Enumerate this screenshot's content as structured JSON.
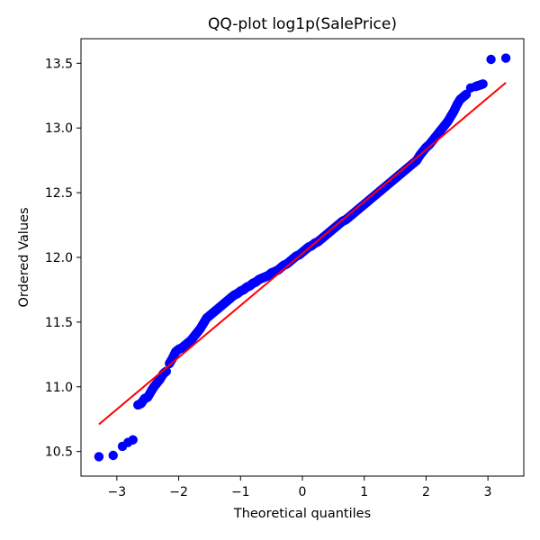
{
  "chart_data": {
    "type": "scatter",
    "title": "QQ-plot log1p(SalePrice)",
    "xlabel": "Theoretical quantiles",
    "ylabel": "Ordered Values",
    "xlim": [
      -3.58,
      3.58
    ],
    "ylim": [
      10.31,
      13.69
    ],
    "xticks": [
      -3,
      -2,
      -1,
      0,
      1,
      2,
      3
    ],
    "xtick_labels": [
      "−3",
      "−2",
      "−1",
      "0",
      "1",
      "2",
      "3"
    ],
    "yticks": [
      10.5,
      11.0,
      11.5,
      12.0,
      12.5,
      13.0,
      13.5
    ],
    "ytick_labels": [
      "10.5",
      "11.0",
      "11.5",
      "12.0",
      "12.5",
      "13.0",
      "13.5"
    ],
    "grid": false,
    "legend": "none",
    "series": [
      {
        "kind": "points",
        "color": "#0000ff",
        "x": [
          -3.29,
          -3.06,
          -2.91,
          -2.82,
          -2.74,
          -2.66,
          -2.61,
          -2.55,
          -2.5,
          -2.44,
          -2.4,
          -2.35,
          -2.3,
          -2.25,
          -2.2,
          -2.15,
          -2.1,
          -2.05,
          -2.0,
          -1.95,
          -1.9,
          -1.85,
          -1.8,
          -1.75,
          -1.7,
          -1.65,
          -1.6,
          -1.55,
          -1.5,
          -1.45,
          -1.4,
          -1.35,
          -1.3,
          -1.25,
          -1.2,
          -1.15,
          -1.1,
          -1.05,
          -1.0,
          -0.95,
          -0.9,
          -0.85,
          -0.8,
          -0.75,
          -0.7,
          -0.65,
          -0.6,
          -0.55,
          -0.5,
          -0.45,
          -0.4,
          -0.35,
          -0.3,
          -0.25,
          -0.2,
          -0.15,
          -0.1,
          -0.05,
          0.0,
          0.05,
          0.1,
          0.15,
          0.2,
          0.25,
          0.3,
          0.35,
          0.4,
          0.45,
          0.5,
          0.55,
          0.6,
          0.65,
          0.7,
          0.75,
          0.8,
          0.85,
          0.9,
          0.95,
          1.0,
          1.05,
          1.1,
          1.15,
          1.2,
          1.25,
          1.3,
          1.35,
          1.4,
          1.45,
          1.5,
          1.55,
          1.6,
          1.65,
          1.7,
          1.75,
          1.8,
          1.85,
          1.9,
          1.95,
          2.0,
          2.05,
          2.1,
          2.15,
          2.2,
          2.25,
          2.3,
          2.35,
          2.4,
          2.45,
          2.5,
          2.55,
          2.6,
          2.65,
          2.72,
          2.8,
          2.86,
          2.92,
          3.05,
          3.29
        ],
        "y": [
          10.46,
          10.47,
          10.54,
          10.57,
          10.59,
          10.86,
          10.87,
          10.91,
          10.92,
          10.97,
          11.0,
          11.03,
          11.06,
          11.1,
          11.12,
          11.18,
          11.22,
          11.27,
          11.29,
          11.3,
          11.32,
          11.34,
          11.36,
          11.39,
          11.42,
          11.45,
          11.49,
          11.53,
          11.55,
          11.57,
          11.59,
          11.61,
          11.63,
          11.65,
          11.67,
          11.69,
          11.71,
          11.72,
          11.74,
          11.75,
          11.77,
          11.78,
          11.8,
          11.81,
          11.83,
          11.84,
          11.85,
          11.86,
          11.88,
          11.89,
          11.9,
          11.92,
          11.94,
          11.95,
          11.97,
          11.99,
          12.01,
          12.02,
          12.04,
          12.06,
          12.08,
          12.09,
          12.11,
          12.12,
          12.14,
          12.16,
          12.18,
          12.2,
          12.22,
          12.24,
          12.26,
          12.28,
          12.29,
          12.31,
          12.33,
          12.35,
          12.37,
          12.39,
          12.41,
          12.43,
          12.45,
          12.47,
          12.49,
          12.51,
          12.53,
          12.55,
          12.57,
          12.59,
          12.61,
          12.63,
          12.65,
          12.67,
          12.69,
          12.71,
          12.73,
          12.75,
          12.79,
          12.82,
          12.85,
          12.87,
          12.9,
          12.93,
          12.96,
          12.99,
          13.02,
          13.05,
          13.09,
          13.13,
          13.18,
          13.22,
          13.24,
          13.26,
          13.31,
          13.32,
          13.33,
          13.34,
          13.53,
          13.54
        ]
      },
      {
        "kind": "fit-line",
        "color": "#ff0000",
        "x": [
          -3.29,
          3.29
        ],
        "y": [
          10.71,
          13.35
        ]
      }
    ]
  }
}
